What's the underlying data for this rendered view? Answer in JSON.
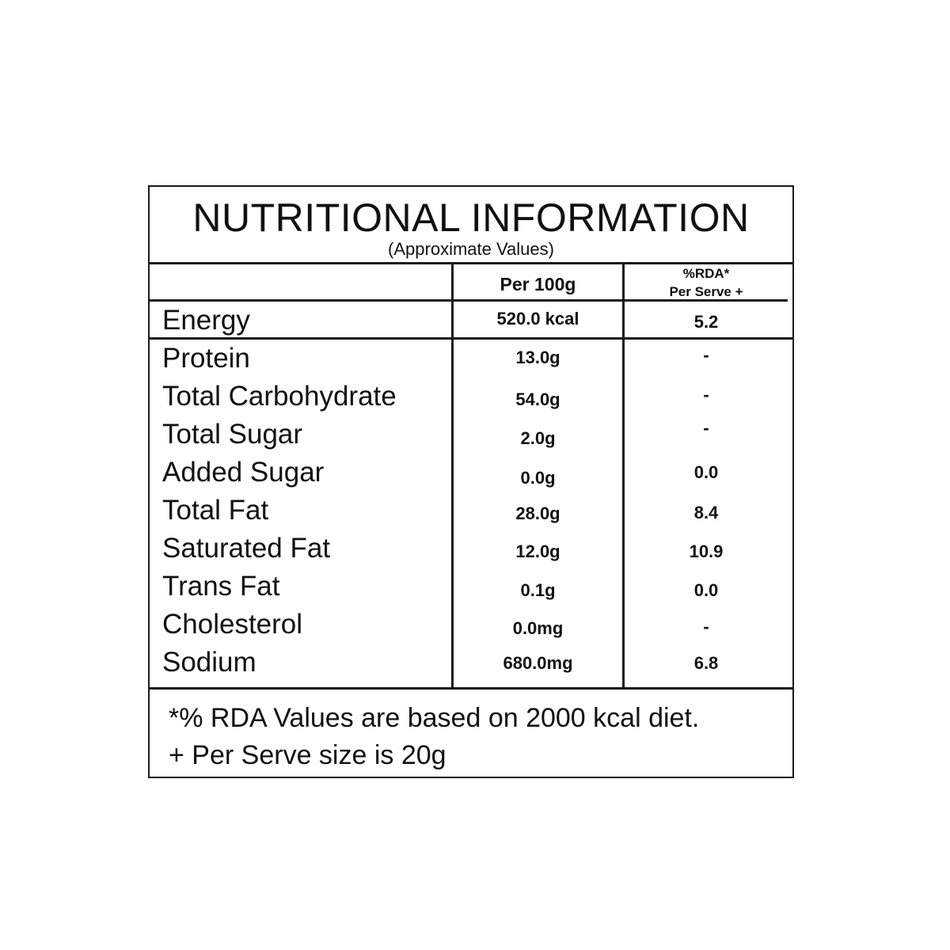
{
  "header": {
    "title": "NUTRITIONAL INFORMATION",
    "subtitle": "(Approximate Values)"
  },
  "columns": {
    "per100": "Per 100g",
    "rda_line1": "%RDA*",
    "rda_line2": "Per Serve +"
  },
  "energy": {
    "label": "Energy",
    "per100": "520.0 kcal",
    "rda": "5.2"
  },
  "rows": [
    {
      "label": "Protein",
      "per100": "13.0g",
      "rda": "-"
    },
    {
      "label": "Total Carbohydrate",
      "per100": "54.0g",
      "rda": "-"
    },
    {
      "label": "Total Sugar",
      "per100": "2.0g",
      "rda": "-"
    },
    {
      "label": "Added Sugar",
      "per100": "0.0g",
      "rda": "0.0"
    },
    {
      "label": "Total Fat",
      "per100": "28.0g",
      "rda": "8.4"
    },
    {
      "label": "Saturated Fat",
      "per100": "12.0g",
      "rda": "10.9"
    },
    {
      "label": "Trans Fat",
      "per100": "0.1g",
      "rda": "0.0"
    },
    {
      "label": "Cholesterol",
      "per100": "0.0mg",
      "rda": "-"
    },
    {
      "label": "Sodium",
      "per100": "680.0mg",
      "rda": "6.8"
    }
  ],
  "footnotes": {
    "line1": "*% RDA Values are based on 2000 kcal diet.",
    "line2": "+ Per Serve size is 20g"
  },
  "colors": {
    "ink": "#111111",
    "background": "#ffffff"
  }
}
